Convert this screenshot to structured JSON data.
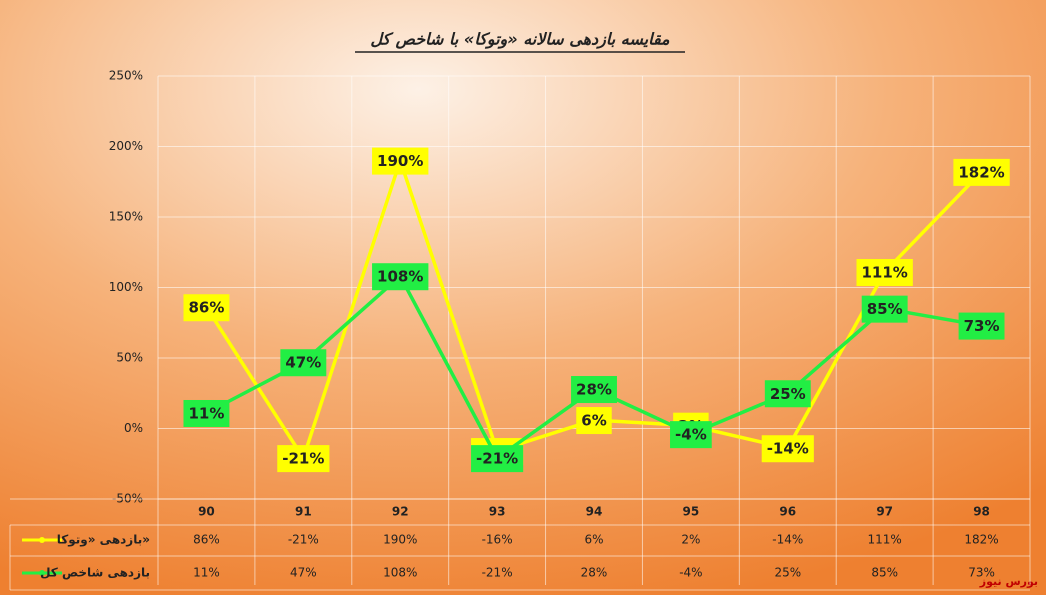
{
  "chart_data": {
    "type": "line",
    "title": "مقایسه بازدهی سالانه «وتوکا» با شاخص کل",
    "categories": [
      "90",
      "91",
      "92",
      "93",
      "94",
      "95",
      "96",
      "97",
      "98"
    ],
    "series": [
      {
        "name": "بازدهی «وتوکا»",
        "color": "#ffff00",
        "values": [
          86,
          -21,
          190,
          -16,
          6,
          2,
          -14,
          111,
          182
        ],
        "value_labels": [
          "86%",
          "-21%",
          "190%",
          "-16%",
          "6%",
          "2%",
          "-14%",
          "111%",
          "182%"
        ]
      },
      {
        "name": "بازدهی شاخص کل",
        "color": "#22ee44",
        "values": [
          11,
          47,
          108,
          -21,
          28,
          -4,
          25,
          85,
          73
        ],
        "value_labels": [
          "11%",
          "47%",
          "108%",
          "-21%",
          "28%",
          "-4%",
          "25%",
          "85%",
          "73%"
        ]
      }
    ],
    "ylim": [
      -50,
      250
    ],
    "yticks": [
      {
        "value": -50,
        "label": "-50%"
      },
      {
        "value": 0,
        "label": "0%"
      },
      {
        "value": 50,
        "label": "50%"
      },
      {
        "value": 100,
        "label": "100%"
      },
      {
        "value": 150,
        "label": "150%"
      },
      {
        "value": 200,
        "label": "200%"
      },
      {
        "value": 250,
        "label": "250%"
      }
    ],
    "grid": true,
    "watermark": "بورس نیوز"
  }
}
